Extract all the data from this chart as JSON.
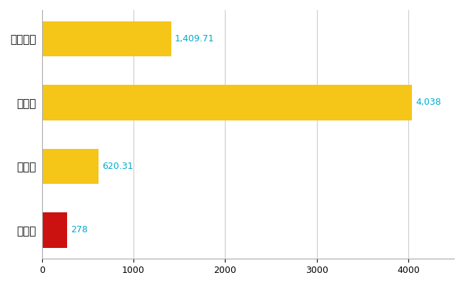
{
  "categories": [
    "小国町",
    "県平均",
    "県最大",
    "全国平均"
  ],
  "values": [
    278,
    620.31,
    4038,
    1409.71
  ],
  "bar_colors": [
    "#CC1111",
    "#F5C518",
    "#F5C518",
    "#F5C518"
  ],
  "labels": [
    "278",
    "620.31",
    "4,038",
    "1,409.71"
  ],
  "xlim": [
    0,
    4500
  ],
  "xticks": [
    0,
    1000,
    2000,
    3000,
    4000
  ],
  "xtick_labels": [
    "0",
    "1000",
    "2000",
    "3000",
    "4000"
  ],
  "background_color": "#FFFFFF",
  "grid_color": "#CCCCCC",
  "label_color": "#00AACC",
  "bar_height": 0.55,
  "figsize": [
    6.5,
    4.0
  ],
  "dpi": 100
}
